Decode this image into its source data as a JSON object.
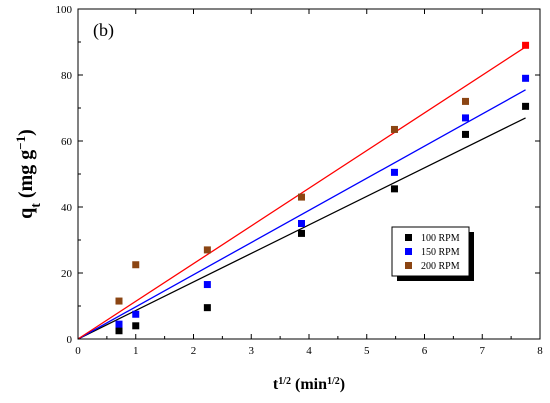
{
  "chart_data": {
    "type": "scatter",
    "panel_label": "(b)",
    "xlabel": "t^(1/2) (min^(1/2))",
    "ylabel": "q_t (mg g^-1)",
    "xlim": [
      0,
      8
    ],
    "ylim": [
      0,
      100
    ],
    "x_ticks": [
      "0",
      "1",
      "2",
      "3",
      "4",
      "5",
      "6",
      "7",
      "8"
    ],
    "y_ticks": [
      "0",
      "20",
      "40",
      "60",
      "80",
      "100"
    ],
    "grid": false,
    "legend_position": "right-center",
    "series": [
      {
        "name": "100 RPM",
        "color": "#000000",
        "points": [
          [
            0.71,
            2.5
          ],
          [
            1.0,
            4.0
          ],
          [
            2.24,
            9.5
          ],
          [
            3.87,
            32.0
          ],
          [
            5.48,
            45.5
          ],
          [
            6.71,
            62.0
          ],
          [
            7.75,
            70.5
          ]
        ],
        "fit": {
          "from": [
            0,
            0
          ],
          "to": [
            7.75,
            67.0
          ]
        }
      },
      {
        "name": "150 RPM",
        "color": "#0000ff",
        "points": [
          [
            0.71,
            4.5
          ],
          [
            1.0,
            7.5
          ],
          [
            2.24,
            16.5
          ],
          [
            3.87,
            35.0
          ],
          [
            5.48,
            50.5
          ],
          [
            6.71,
            67.0
          ],
          [
            7.75,
            79.0
          ]
        ],
        "fit": {
          "from": [
            0,
            0
          ],
          "to": [
            7.75,
            75.5
          ]
        }
      },
      {
        "name": "200 RPM",
        "color": "#ff0000",
        "marker_color": "#8b4513",
        "points": [
          [
            0.71,
            11.5
          ],
          [
            1.0,
            22.5
          ],
          [
            2.24,
            27.0
          ],
          [
            3.87,
            43.0
          ],
          [
            5.48,
            63.5
          ],
          [
            6.71,
            72.0
          ],
          [
            7.75,
            89.0
          ]
        ],
        "fit": {
          "from": [
            0,
            0
          ],
          "to": [
            7.75,
            88.5
          ]
        }
      }
    ]
  }
}
